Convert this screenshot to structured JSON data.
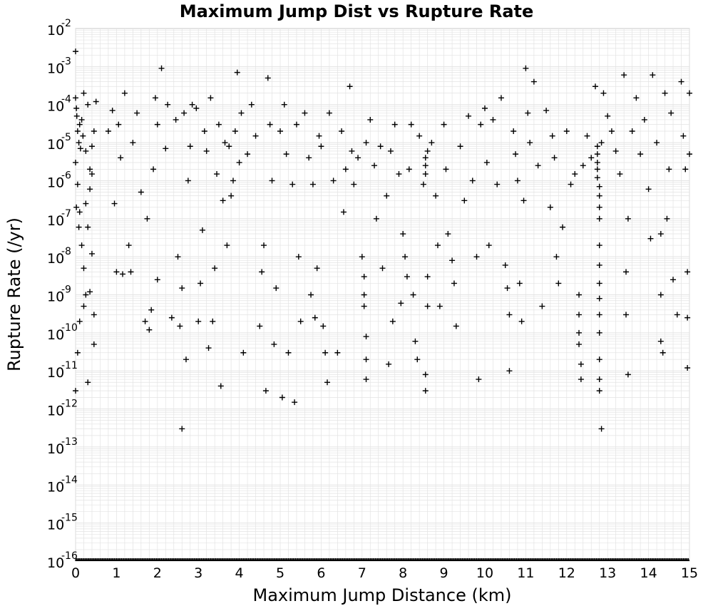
{
  "chart_data": {
    "type": "scatter",
    "title": "Maximum Jump Dist vs Rupture Rate",
    "xlabel": "Maximum Jump Distance (km)",
    "ylabel": "Rupture Rate (/yr)",
    "xlim": [
      0,
      15
    ],
    "ylim_exponent": [
      -16,
      -2
    ],
    "yscale": "log",
    "grid": true,
    "marker": "plus",
    "marker_color": "#000000",
    "grid_color": "#e3e3e3",
    "x_ticks": [
      "0",
      "1",
      "2",
      "3",
      "4",
      "5",
      "6",
      "7",
      "8",
      "9",
      "10",
      "11",
      "12",
      "13",
      "14",
      "15"
    ],
    "y_ticks": [
      {
        "base": "10",
        "exp": "-16"
      },
      {
        "base": "10",
        "exp": "-15"
      },
      {
        "base": "10",
        "exp": "-14"
      },
      {
        "base": "10",
        "exp": "-13"
      },
      {
        "base": "10",
        "exp": "-12"
      },
      {
        "base": "10",
        "exp": "-11"
      },
      {
        "base": "10",
        "exp": "-10"
      },
      {
        "base": "10",
        "exp": "-9"
      },
      {
        "base": "10",
        "exp": "-8"
      },
      {
        "base": "10",
        "exp": "-7"
      },
      {
        "base": "10",
        "exp": "-6"
      },
      {
        "base": "10",
        "exp": "-5"
      },
      {
        "base": "10",
        "exp": "-4"
      },
      {
        "base": "10",
        "exp": "-3"
      },
      {
        "base": "10",
        "exp": "-2"
      }
    ],
    "points": [
      [
        0.0,
        0.0025
      ],
      [
        0.0,
        0.00015
      ],
      [
        0.02,
        8e-05
      ],
      [
        0.03,
        5e-05
      ],
      [
        0.05,
        2e-05
      ],
      [
        0.08,
        1e-05
      ],
      [
        0.1,
        3e-05
      ],
      [
        0.12,
        7e-06
      ],
      [
        0.15,
        4e-05
      ],
      [
        0.18,
        1.5e-05
      ],
      [
        0.2,
        0.0002
      ],
      [
        0.25,
        6e-06
      ],
      [
        0.3,
        0.0001
      ],
      [
        0.35,
        2e-06
      ],
      [
        0.4,
        8e-06
      ],
      [
        0.45,
        2e-05
      ],
      [
        0.5,
        0.00012
      ],
      [
        0.0,
        3e-06
      ],
      [
        0.05,
        8e-07
      ],
      [
        0.1,
        1.5e-07
      ],
      [
        0.15,
        2e-08
      ],
      [
        0.2,
        5e-09
      ],
      [
        0.25,
        1e-09
      ],
      [
        0.3,
        6e-08
      ],
      [
        0.35,
        1.2e-09
      ],
      [
        0.4,
        1.2e-08
      ],
      [
        0.1,
        2e-10
      ],
      [
        0.2,
        5e-10
      ],
      [
        0.45,
        3e-10
      ],
      [
        0.05,
        3e-11
      ],
      [
        0.0,
        3e-12
      ],
      [
        0.3,
        5e-12
      ],
      [
        0.45,
        5e-11
      ],
      [
        0.02,
        2e-07
      ],
      [
        0.08,
        6e-08
      ],
      [
        0.25,
        2.5e-07
      ],
      [
        0.35,
        6e-07
      ],
      [
        0.4,
        1.5e-06
      ],
      [
        0.8,
        2e-05
      ],
      [
        0.9,
        7e-05
      ],
      [
        0.95,
        2.5e-07
      ],
      [
        1.0,
        4e-09
      ],
      [
        1.05,
        3e-05
      ],
      [
        1.1,
        4e-06
      ],
      [
        1.15,
        3.5e-09
      ],
      [
        1.2,
        0.0002
      ],
      [
        1.3,
        2e-08
      ],
      [
        1.35,
        4e-09
      ],
      [
        1.4,
        1e-05
      ],
      [
        1.5,
        6e-05
      ],
      [
        1.6,
        5e-07
      ],
      [
        1.7,
        2e-10
      ],
      [
        1.75,
        1e-07
      ],
      [
        1.8,
        1.2e-10
      ],
      [
        1.85,
        4e-10
      ],
      [
        1.9,
        2e-06
      ],
      [
        1.95,
        0.00015
      ],
      [
        2.0,
        3e-05
      ],
      [
        2.0,
        2.5e-09
      ],
      [
        2.1,
        0.0009
      ],
      [
        2.2,
        7e-06
      ],
      [
        2.25,
        0.0001
      ],
      [
        2.35,
        2.5e-10
      ],
      [
        2.45,
        4e-05
      ],
      [
        2.5,
        1e-08
      ],
      [
        2.55,
        1.5e-10
      ],
      [
        2.6,
        1.5e-09
      ],
      [
        2.6,
        3e-13
      ],
      [
        2.65,
        6e-05
      ],
      [
        2.7,
        2e-11
      ],
      [
        2.75,
        1e-06
      ],
      [
        2.8,
        8e-06
      ],
      [
        2.85,
        0.0001
      ],
      [
        2.95,
        8e-05
      ],
      [
        3.0,
        2e-10
      ],
      [
        3.05,
        2e-09
      ],
      [
        3.1,
        5e-08
      ],
      [
        3.15,
        2e-05
      ],
      [
        3.2,
        6e-06
      ],
      [
        3.25,
        4e-11
      ],
      [
        3.3,
        0.00015
      ],
      [
        3.35,
        2e-10
      ],
      [
        3.4,
        5e-09
      ],
      [
        3.45,
        1.5e-06
      ],
      [
        3.5,
        3e-05
      ],
      [
        3.55,
        4e-12
      ],
      [
        3.6,
        3e-07
      ],
      [
        3.65,
        1e-05
      ],
      [
        3.7,
        2e-08
      ],
      [
        3.75,
        8e-06
      ],
      [
        3.8,
        4e-07
      ],
      [
        3.85,
        1e-06
      ],
      [
        3.9,
        2e-05
      ],
      [
        3.95,
        0.0007
      ],
      [
        4.0,
        3e-06
      ],
      [
        4.05,
        6e-05
      ],
      [
        4.1,
        3e-11
      ],
      [
        4.2,
        5e-06
      ],
      [
        4.3,
        0.0001
      ],
      [
        4.4,
        1.5e-05
      ],
      [
        4.5,
        1.5e-10
      ],
      [
        4.55,
        4e-09
      ],
      [
        4.6,
        2e-08
      ],
      [
        4.65,
        3e-12
      ],
      [
        4.7,
        0.0005
      ],
      [
        4.75,
        3e-05
      ],
      [
        4.8,
        1e-06
      ],
      [
        4.85,
        5e-11
      ],
      [
        4.9,
        1.5e-09
      ],
      [
        5.0,
        2e-05
      ],
      [
        5.05,
        2e-12
      ],
      [
        5.1,
        0.0001
      ],
      [
        5.15,
        5e-06
      ],
      [
        5.2,
        3e-11
      ],
      [
        5.3,
        8e-07
      ],
      [
        5.35,
        1.5e-12
      ],
      [
        5.4,
        3e-05
      ],
      [
        5.45,
        1e-08
      ],
      [
        5.5,
        2e-10
      ],
      [
        5.6,
        6e-05
      ],
      [
        5.7,
        4e-06
      ],
      [
        5.75,
        1e-09
      ],
      [
        5.8,
        8e-07
      ],
      [
        5.85,
        2.5e-10
      ],
      [
        5.9,
        5e-09
      ],
      [
        5.95,
        1.5e-05
      ],
      [
        6.0,
        8e-06
      ],
      [
        6.05,
        1.5e-10
      ],
      [
        6.1,
        3e-11
      ],
      [
        6.15,
        5e-12
      ],
      [
        6.2,
        6e-05
      ],
      [
        6.3,
        1e-06
      ],
      [
        6.4,
        3e-11
      ],
      [
        6.5,
        2e-05
      ],
      [
        6.55,
        1.5e-07
      ],
      [
        6.6,
        2e-06
      ],
      [
        6.7,
        0.0003
      ],
      [
        6.75,
        6e-06
      ],
      [
        6.8,
        8e-07
      ],
      [
        6.9,
        4e-06
      ],
      [
        7.0,
        1e-08
      ],
      [
        7.05,
        3e-09
      ],
      [
        7.05,
        1e-09
      ],
      [
        7.05,
        5e-10
      ],
      [
        7.1,
        8e-11
      ],
      [
        7.1,
        2e-11
      ],
      [
        7.1,
        6e-12
      ],
      [
        7.1,
        1e-05
      ],
      [
        7.2,
        4e-05
      ],
      [
        7.3,
        2.5e-06
      ],
      [
        7.35,
        1e-07
      ],
      [
        7.45,
        8e-06
      ],
      [
        7.5,
        5e-09
      ],
      [
        7.6,
        4e-07
      ],
      [
        7.65,
        1.5e-11
      ],
      [
        7.7,
        6e-06
      ],
      [
        7.75,
        2e-10
      ],
      [
        7.8,
        3e-05
      ],
      [
        7.9,
        1.5e-06
      ],
      [
        7.95,
        6e-10
      ],
      [
        8.0,
        4e-08
      ],
      [
        8.05,
        1e-08
      ],
      [
        8.1,
        3e-09
      ],
      [
        8.15,
        2e-06
      ],
      [
        8.2,
        3e-05
      ],
      [
        8.25,
        1e-09
      ],
      [
        8.3,
        6e-11
      ],
      [
        8.35,
        2e-11
      ],
      [
        8.4,
        1.5e-05
      ],
      [
        8.5,
        8e-07
      ],
      [
        8.55,
        1.5e-06
      ],
      [
        8.55,
        2.5e-06
      ],
      [
        8.55,
        4e-06
      ],
      [
        8.6,
        6e-06
      ],
      [
        8.6,
        3e-09
      ],
      [
        8.6,
        5e-10
      ],
      [
        8.55,
        8e-12
      ],
      [
        8.55,
        3e-12
      ],
      [
        8.7,
        1e-05
      ],
      [
        8.8,
        4e-07
      ],
      [
        8.85,
        2e-08
      ],
      [
        8.9,
        5e-10
      ],
      [
        9.0,
        3e-05
      ],
      [
        9.05,
        2e-06
      ],
      [
        9.1,
        4e-08
      ],
      [
        9.2,
        8e-09
      ],
      [
        9.25,
        2e-09
      ],
      [
        9.3,
        1.5e-10
      ],
      [
        9.4,
        8e-06
      ],
      [
        9.5,
        3e-07
      ],
      [
        9.6,
        5e-05
      ],
      [
        9.7,
        1e-06
      ],
      [
        9.8,
        1e-08
      ],
      [
        9.85,
        6e-12
      ],
      [
        9.9,
        3e-05
      ],
      [
        10.0,
        8e-05
      ],
      [
        10.05,
        3e-06
      ],
      [
        10.1,
        2e-08
      ],
      [
        10.2,
        4e-05
      ],
      [
        10.3,
        8e-07
      ],
      [
        10.4,
        0.00015
      ],
      [
        10.5,
        6e-09
      ],
      [
        10.55,
        1.5e-09
      ],
      [
        10.6,
        3e-10
      ],
      [
        10.6,
        1e-11
      ],
      [
        10.7,
        2e-05
      ],
      [
        10.75,
        5e-06
      ],
      [
        10.8,
        1e-06
      ],
      [
        10.85,
        2e-09
      ],
      [
        10.9,
        2e-10
      ],
      [
        10.95,
        3e-07
      ],
      [
        11.0,
        0.0009
      ],
      [
        11.05,
        6e-05
      ],
      [
        11.1,
        1e-05
      ],
      [
        11.2,
        0.0004
      ],
      [
        11.3,
        2.5e-06
      ],
      [
        11.4,
        5e-10
      ],
      [
        11.5,
        7e-05
      ],
      [
        11.6,
        2e-07
      ],
      [
        11.65,
        1.5e-05
      ],
      [
        11.7,
        4e-06
      ],
      [
        11.75,
        1e-08
      ],
      [
        11.8,
        2e-09
      ],
      [
        11.9,
        6e-08
      ],
      [
        12.0,
        2e-05
      ],
      [
        12.1,
        8e-07
      ],
      [
        12.2,
        1.5e-06
      ],
      [
        12.3,
        1e-09
      ],
      [
        12.3,
        3e-10
      ],
      [
        12.3,
        1e-10
      ],
      [
        12.3,
        5e-11
      ],
      [
        12.35,
        1.5e-11
      ],
      [
        12.35,
        6e-12
      ],
      [
        12.4,
        2.5e-06
      ],
      [
        12.5,
        1.5e-05
      ],
      [
        12.6,
        4e-06
      ],
      [
        12.7,
        0.0003
      ],
      [
        12.75,
        8e-06
      ],
      [
        12.75,
        5e-06
      ],
      [
        12.75,
        3e-06
      ],
      [
        12.75,
        2e-06
      ],
      [
        12.75,
        1.2e-06
      ],
      [
        12.8,
        7e-07
      ],
      [
        12.8,
        4e-07
      ],
      [
        12.8,
        2e-07
      ],
      [
        12.8,
        1e-07
      ],
      [
        12.8,
        2e-08
      ],
      [
        12.8,
        6e-09
      ],
      [
        12.8,
        2e-09
      ],
      [
        12.8,
        8e-10
      ],
      [
        12.8,
        3e-10
      ],
      [
        12.8,
        1e-10
      ],
      [
        12.8,
        2e-11
      ],
      [
        12.8,
        6e-12
      ],
      [
        12.8,
        3e-12
      ],
      [
        12.85,
        3e-13
      ],
      [
        12.85,
        1e-05
      ],
      [
        12.9,
        0.0002
      ],
      [
        13.0,
        5e-05
      ],
      [
        13.1,
        2e-05
      ],
      [
        13.2,
        6e-06
      ],
      [
        13.3,
        1.5e-06
      ],
      [
        13.4,
        0.0006
      ],
      [
        13.45,
        4e-09
      ],
      [
        13.45,
        3e-10
      ],
      [
        13.5,
        1e-07
      ],
      [
        13.5,
        8e-12
      ],
      [
        13.6,
        2e-05
      ],
      [
        13.7,
        0.00015
      ],
      [
        13.8,
        5e-06
      ],
      [
        13.9,
        4e-05
      ],
      [
        14.0,
        6e-07
      ],
      [
        14.05,
        3e-08
      ],
      [
        14.1,
        0.0006
      ],
      [
        14.2,
        1e-05
      ],
      [
        14.3,
        4e-08
      ],
      [
        14.3,
        1e-09
      ],
      [
        14.3,
        6e-11
      ],
      [
        14.35,
        3e-11
      ],
      [
        14.4,
        0.0002
      ],
      [
        14.45,
        1e-07
      ],
      [
        14.5,
        2e-06
      ],
      [
        14.55,
        6e-05
      ],
      [
        14.6,
        2.5e-09
      ],
      [
        14.7,
        3e-10
      ],
      [
        14.8,
        0.0004
      ],
      [
        14.85,
        1.5e-05
      ],
      [
        14.9,
        2e-06
      ],
      [
        14.95,
        4e-09
      ],
      [
        14.95,
        2.5e-10
      ],
      [
        14.95,
        1.2e-11
      ],
      [
        15.0,
        0.0002
      ],
      [
        15.0,
        5e-06
      ]
    ],
    "floor_band_value": 1e-16
  }
}
